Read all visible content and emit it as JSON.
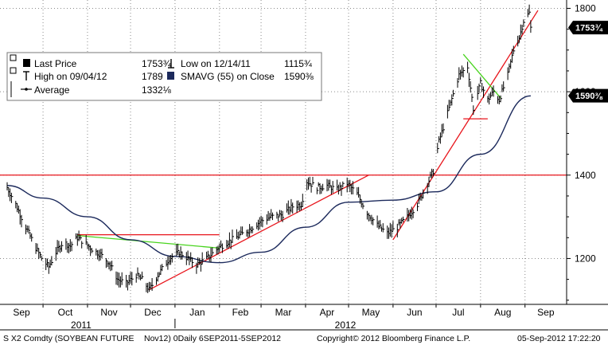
{
  "chart_data": {
    "type": "line",
    "style": "hlc-bars",
    "grid": true,
    "legend_position": "top-left",
    "colors": {
      "price_bars": "#000000",
      "sma": "#1c2a5c",
      "trendline": "#e8141b",
      "channel_line": "#48d41e",
      "grid": "#8a8a8a",
      "tag_bg": "#000000",
      "tag_text": "#ffffff"
    },
    "ylim": [
      1090,
      1820
    ],
    "y_ticks": [
      1200,
      1400,
      1600,
      1800
    ],
    "x_month_labels": [
      "Sep",
      "Oct",
      "Nov",
      "Dec",
      "Jan",
      "Feb",
      "Mar",
      "Apr",
      "May",
      "Jun",
      "Jul",
      "Aug",
      "Sep"
    ],
    "year_labels": [
      "2011",
      "2012"
    ],
    "price_path": [
      [
        "2011-09-06",
        1370
      ],
      [
        "2011-09-12",
        1330
      ],
      [
        "2011-09-19",
        1275
      ],
      [
        "2011-09-26",
        1225
      ],
      [
        "2011-10-01",
        1195
      ],
      [
        "2011-10-05",
        1180
      ],
      [
        "2011-10-10",
        1215
      ],
      [
        "2011-10-15",
        1240
      ],
      [
        "2011-10-20",
        1230
      ],
      [
        "2011-10-25",
        1250
      ],
      [
        "2011-10-31",
        1235
      ],
      [
        "2011-11-05",
        1220
      ],
      [
        "2011-11-10",
        1210
      ],
      [
        "2011-11-16",
        1190
      ],
      [
        "2011-11-22",
        1150
      ],
      [
        "2011-11-28",
        1140
      ],
      [
        "2011-12-05",
        1160
      ],
      [
        "2011-12-09",
        1150
      ],
      [
        "2011-12-14",
        1125
      ],
      [
        "2011-12-20",
        1160
      ],
      [
        "2011-12-28",
        1200
      ],
      [
        "2012-01-04",
        1215
      ],
      [
        "2012-01-10",
        1200
      ],
      [
        "2012-01-16",
        1185
      ],
      [
        "2012-01-23",
        1200
      ],
      [
        "2012-01-31",
        1225
      ],
      [
        "2012-02-07",
        1240
      ],
      [
        "2012-02-15",
        1255
      ],
      [
        "2012-02-22",
        1270
      ],
      [
        "2012-03-01",
        1290
      ],
      [
        "2012-03-08",
        1300
      ],
      [
        "2012-03-16",
        1305
      ],
      [
        "2012-03-23",
        1325
      ],
      [
        "2012-03-29",
        1330
      ],
      [
        "2012-04-02",
        1385
      ],
      [
        "2012-04-09",
        1370
      ],
      [
        "2012-04-16",
        1375
      ],
      [
        "2012-04-23",
        1365
      ],
      [
        "2012-04-30",
        1380
      ],
      [
        "2012-05-07",
        1355
      ],
      [
        "2012-05-14",
        1310
      ],
      [
        "2012-05-21",
        1280
      ],
      [
        "2012-05-28",
        1260
      ],
      [
        "2012-06-04",
        1275
      ],
      [
        "2012-06-11",
        1300
      ],
      [
        "2012-06-18",
        1330
      ],
      [
        "2012-06-25",
        1380
      ],
      [
        "2012-06-29",
        1410
      ],
      [
        "2012-07-03",
        1480
      ],
      [
        "2012-07-10",
        1560
      ],
      [
        "2012-07-17",
        1640
      ],
      [
        "2012-07-23",
        1660
      ],
      [
        "2012-07-27",
        1560
      ],
      [
        "2012-08-01",
        1620
      ],
      [
        "2012-08-06",
        1580
      ],
      [
        "2012-08-10",
        1600
      ],
      [
        "2012-08-14",
        1580
      ],
      [
        "2012-08-20",
        1640
      ],
      [
        "2012-08-24",
        1700
      ],
      [
        "2012-08-28",
        1730
      ],
      [
        "2012-08-31",
        1770
      ],
      [
        "2012-09-04",
        1789
      ],
      [
        "2012-09-05",
        1753
      ]
    ],
    "series": [
      {
        "name": "Last Price",
        "value_label": "1753¾",
        "tag_value": 1753.75
      },
      {
        "name": "SMAVG (55) on Close",
        "value_label": "1590⅜",
        "tag_value": 1590.375,
        "values": [
          [
            "2011-09-06",
            1375
          ],
          [
            "2011-10-01",
            1345
          ],
          [
            "2011-11-01",
            1300
          ],
          [
            "2011-12-01",
            1245
          ],
          [
            "2012-01-01",
            1205
          ],
          [
            "2012-02-01",
            1190
          ],
          [
            "2012-03-01",
            1215
          ],
          [
            "2012-04-01",
            1275
          ],
          [
            "2012-05-01",
            1335
          ],
          [
            "2012-06-01",
            1340
          ],
          [
            "2012-07-01",
            1360
          ],
          [
            "2012-08-01",
            1450
          ],
          [
            "2012-09-05",
            1590
          ]
        ]
      }
    ],
    "annotations": {
      "red_horizontal": 1400,
      "red_dec_feb_line": [
        [
          "2011-12-14",
          1125
        ],
        [
          "2012-05-15",
          1400
        ]
      ],
      "red_jun_sep_line": [
        [
          "2012-06-01",
          1245
        ],
        [
          "2012-09-10",
          1795
        ]
      ],
      "red_oct_feb_resistance": [
        [
          "2011-10-25",
          1257
        ],
        [
          "2012-02-01",
          1257
        ]
      ],
      "green_oct_feb_line": [
        [
          "2011-10-25",
          1255
        ],
        [
          "2012-02-01",
          1225
        ]
      ],
      "green_jul_aug_line": [
        [
          "2012-07-20",
          1690
        ],
        [
          "2012-08-15",
          1585
        ]
      ],
      "red_jul_support": [
        [
          "2012-07-20",
          1535
        ],
        [
          "2012-08-06",
          1535
        ]
      ]
    }
  },
  "legend": {
    "rows": [
      [
        {
          "marker": "square-filled",
          "label": "Last Price",
          "value": "1753¾"
        },
        {
          "marker": "low-arrow",
          "label": "Low on 12/14/11",
          "value": "1115¾"
        }
      ],
      [
        {
          "marker": "high-arrow",
          "label": "High on 09/04/12",
          "value": "1789"
        },
        {
          "marker": "square-navy",
          "label": "SMAVG (55) on Close",
          "value": "1590⅜"
        }
      ],
      [
        {
          "marker": "dash-dot",
          "label": "Average",
          "value": "1332⅛"
        }
      ]
    ]
  },
  "footer": {
    "security": "S X2 Comdty (SOYBEAN FUTURE",
    "params": "Nov12) 0Daily 6SEP2011-5SEP2012",
    "copyright": "Copyright© 2012 Bloomberg Finance L.P.",
    "timestamp": "05-Sep-2012 17:22:20"
  }
}
